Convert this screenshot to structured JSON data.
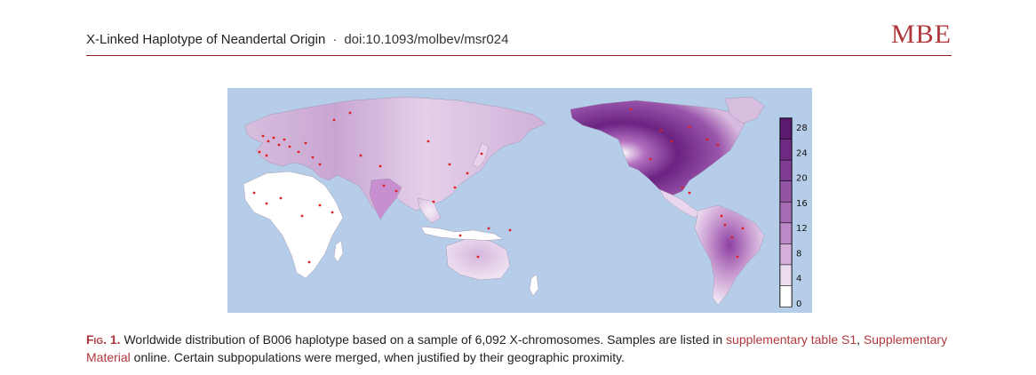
{
  "header": {
    "running_title": "X-Linked Haplotype of Neandertal Origin",
    "separator": "·",
    "doi": "doi:10.1093/molbev/msr024",
    "journal": "MBE"
  },
  "figure": {
    "legend": {
      "ticks": [
        "28",
        "24",
        "20",
        "16",
        "12",
        "8",
        "4",
        "0"
      ],
      "colors": [
        "#5a1a6e",
        "#6e2a82",
        "#7f3c93",
        "#9255a4",
        "#a66db4",
        "#bb89c6",
        "#d3afd9",
        "#ecdcf0",
        "#ffffff"
      ]
    },
    "colors": {
      "ocean": "#b5cde9",
      "land_low": "#ffffff",
      "land_mid": "#dcc2e2",
      "land_high": "#6b2282",
      "sample_point": "#e02020"
    }
  },
  "caption": {
    "label": "Fig. 1.",
    "text_1": " Worldwide distribution of B006 haplotype based on a sample of 6,092 X-chromosomes. Samples are listed in ",
    "link_1": "supplementary table S1",
    "text_2": ", ",
    "link_2": "Supplementary Material",
    "text_3": " online. Certain subpopulations were merged, when justified by their geographic proximity."
  }
}
